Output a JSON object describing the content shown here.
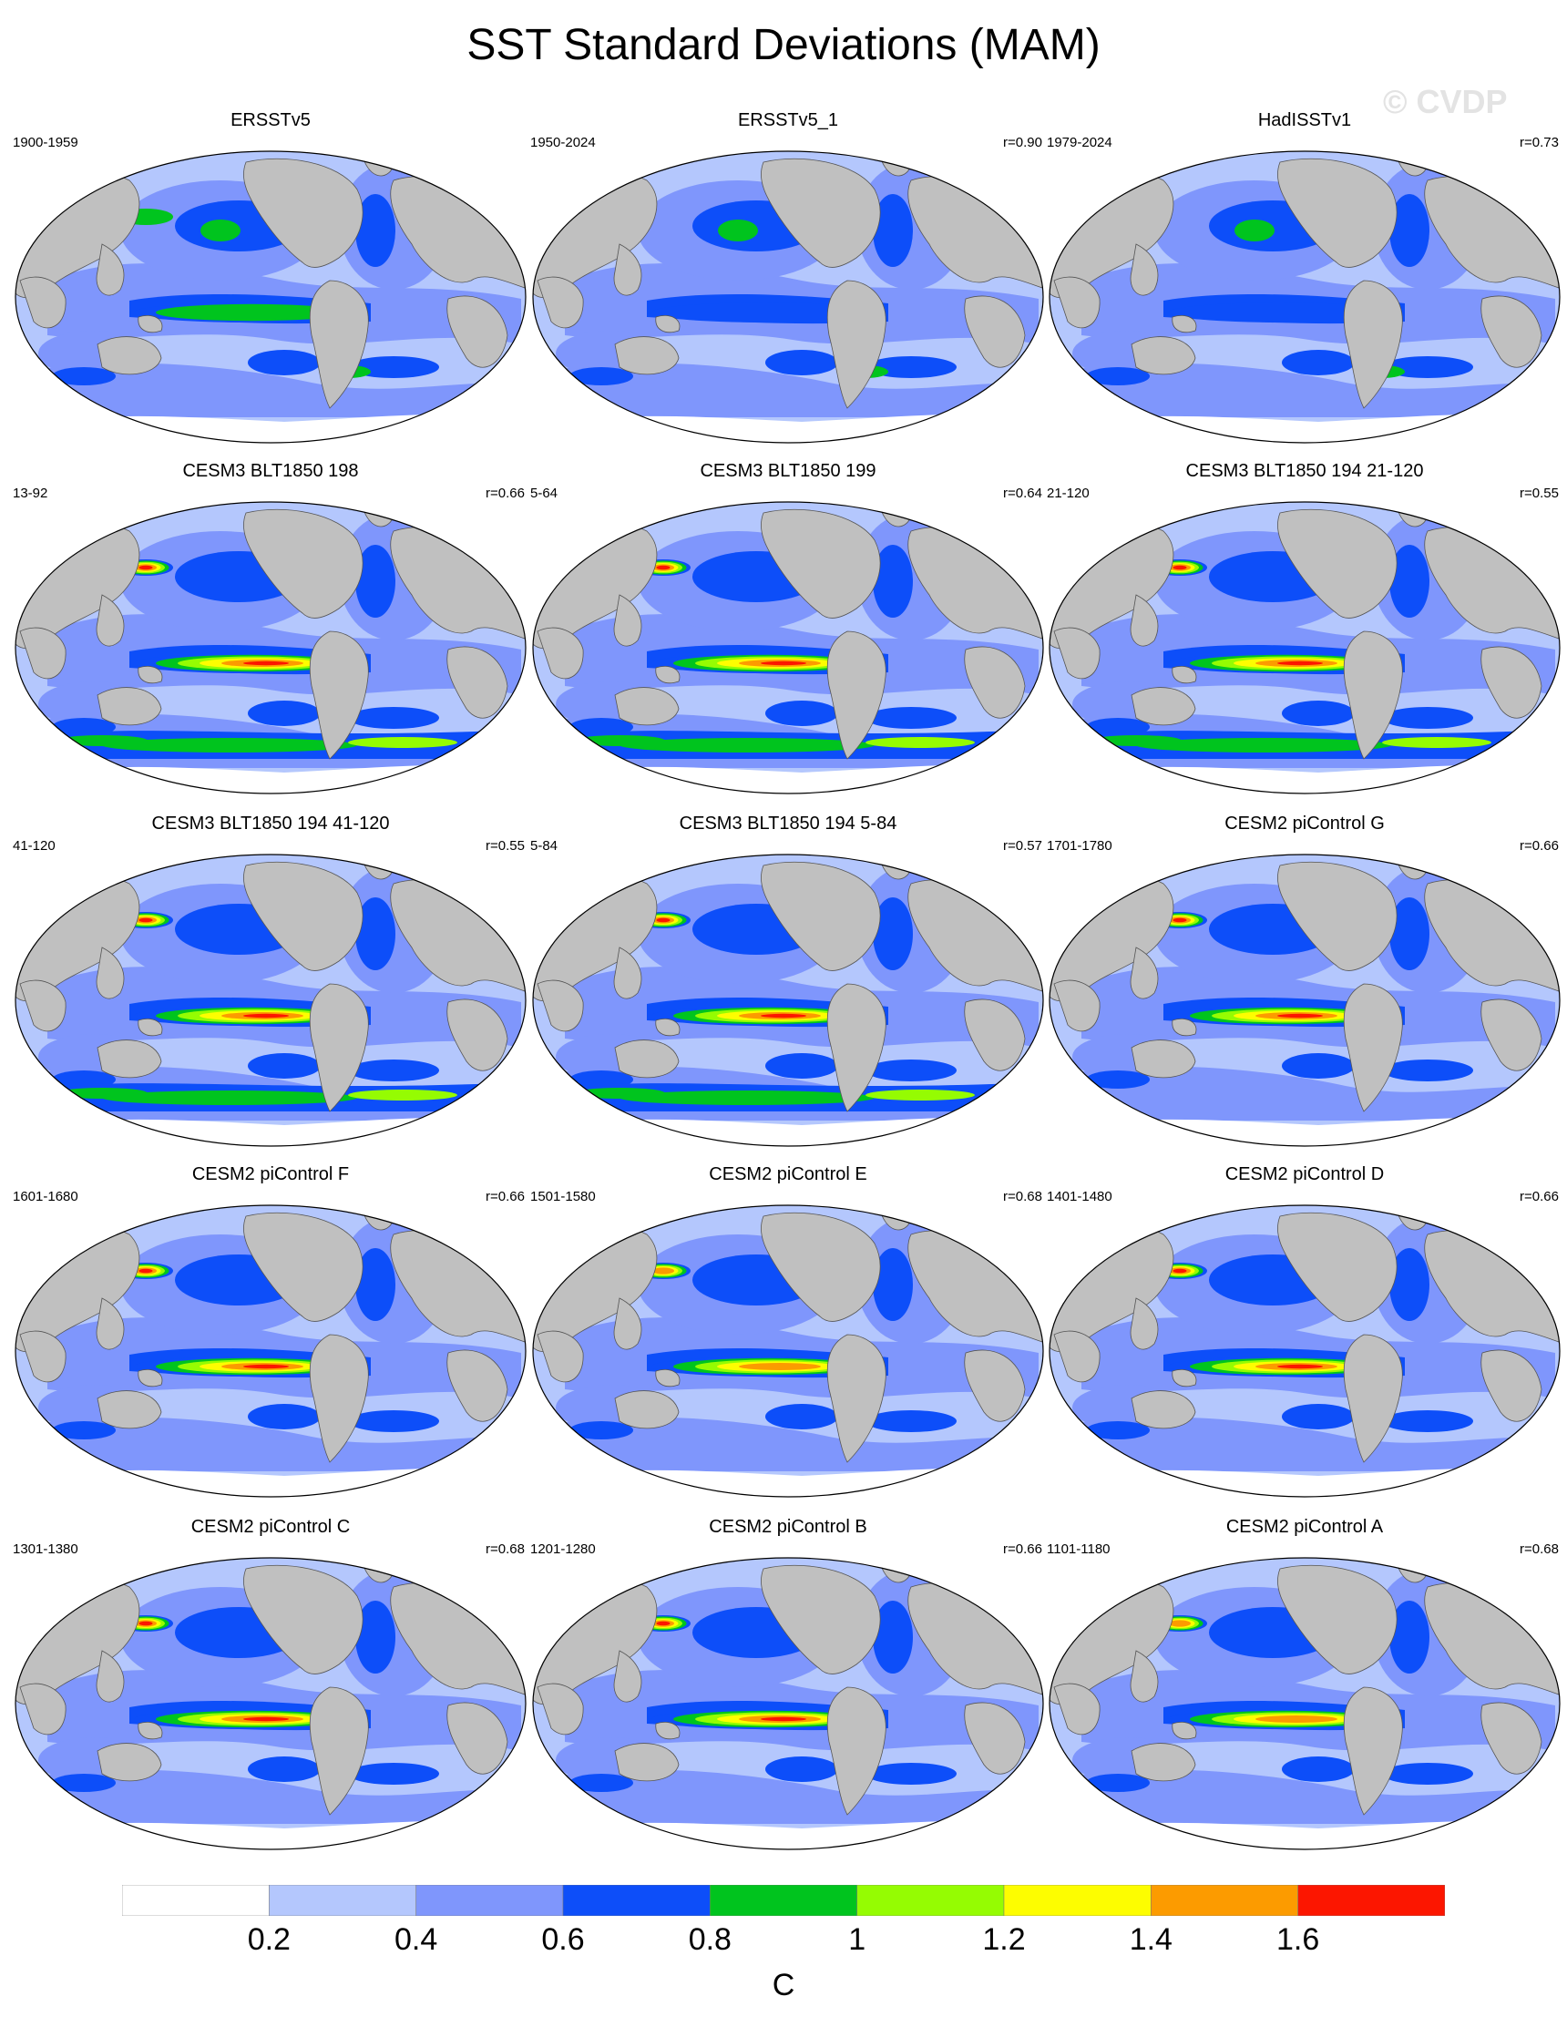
{
  "title": "SST Standard Deviations (MAM)",
  "watermark": "© CVDP",
  "panels": [
    {
      "name": "ERSSTv5",
      "years": "1900-1959",
      "r": "",
      "peak": 0.9,
      "style": "obs"
    },
    {
      "name": "ERSSTv5_1",
      "years": "1950-2024",
      "r": "r=0.90",
      "peak": 0.8,
      "style": "obs"
    },
    {
      "name": "HadISSTv1",
      "years": "1979-2024",
      "r": "r=0.73",
      "peak": 0.7,
      "style": "obs"
    },
    {
      "name": "CESM3 BLT1850 198",
      "years": "13-92",
      "r": "r=0.66",
      "peak": 1.7,
      "style": "cesm3"
    },
    {
      "name": "CESM3 BLT1850 199",
      "years": "5-64",
      "r": "r=0.64",
      "peak": 1.7,
      "style": "cesm3"
    },
    {
      "name": "CESM3 BLT1850 194 21-120",
      "years": "21-120",
      "r": "r=0.55",
      "peak": 1.7,
      "style": "cesm3"
    },
    {
      "name": "CESM3 BLT1850 194 41-120",
      "years": "41-120",
      "r": "r=0.55",
      "peak": 1.7,
      "style": "cesm3"
    },
    {
      "name": "CESM3 BLT1850 194 5-84",
      "years": "5-84",
      "r": "r=0.57",
      "peak": 1.7,
      "style": "cesm3"
    },
    {
      "name": "CESM2 piControl G",
      "years": "1701-1780",
      "r": "r=0.66",
      "peak": 1.7,
      "style": "cesm2"
    },
    {
      "name": "CESM2 piControl F",
      "years": "1601-1680",
      "r": "r=0.66",
      "peak": 1.7,
      "style": "cesm2"
    },
    {
      "name": "CESM2 piControl E",
      "years": "1501-1580",
      "r": "r=0.68",
      "peak": 1.5,
      "style": "cesm2"
    },
    {
      "name": "CESM2 piControl D",
      "years": "1401-1480",
      "r": "r=0.66",
      "peak": 1.7,
      "style": "cesm2"
    },
    {
      "name": "CESM2 piControl C",
      "years": "1301-1380",
      "r": "r=0.68",
      "peak": 1.7,
      "style": "cesm2"
    },
    {
      "name": "CESM2 piControl B",
      "years": "1201-1280",
      "r": "r=0.66",
      "peak": 1.7,
      "style": "cesm2"
    },
    {
      "name": "CESM2 piControl A",
      "years": "1101-1180",
      "r": "r=0.68",
      "peak": 1.5,
      "style": "cesm2"
    }
  ],
  "colorbar": {
    "colors": [
      "#ffffff",
      "#b4c7fd",
      "#7f96fc",
      "#0d4ef9",
      "#00c41e",
      "#95fc02",
      "#fdfd00",
      "#fc9b00",
      "#fc1600"
    ],
    "tick_labels": [
      "0.2",
      "0.4",
      "0.6",
      "0.8",
      "1",
      "1.2",
      "1.4",
      "1.6"
    ],
    "units": "C"
  },
  "land_color": "#c0c0c0"
}
